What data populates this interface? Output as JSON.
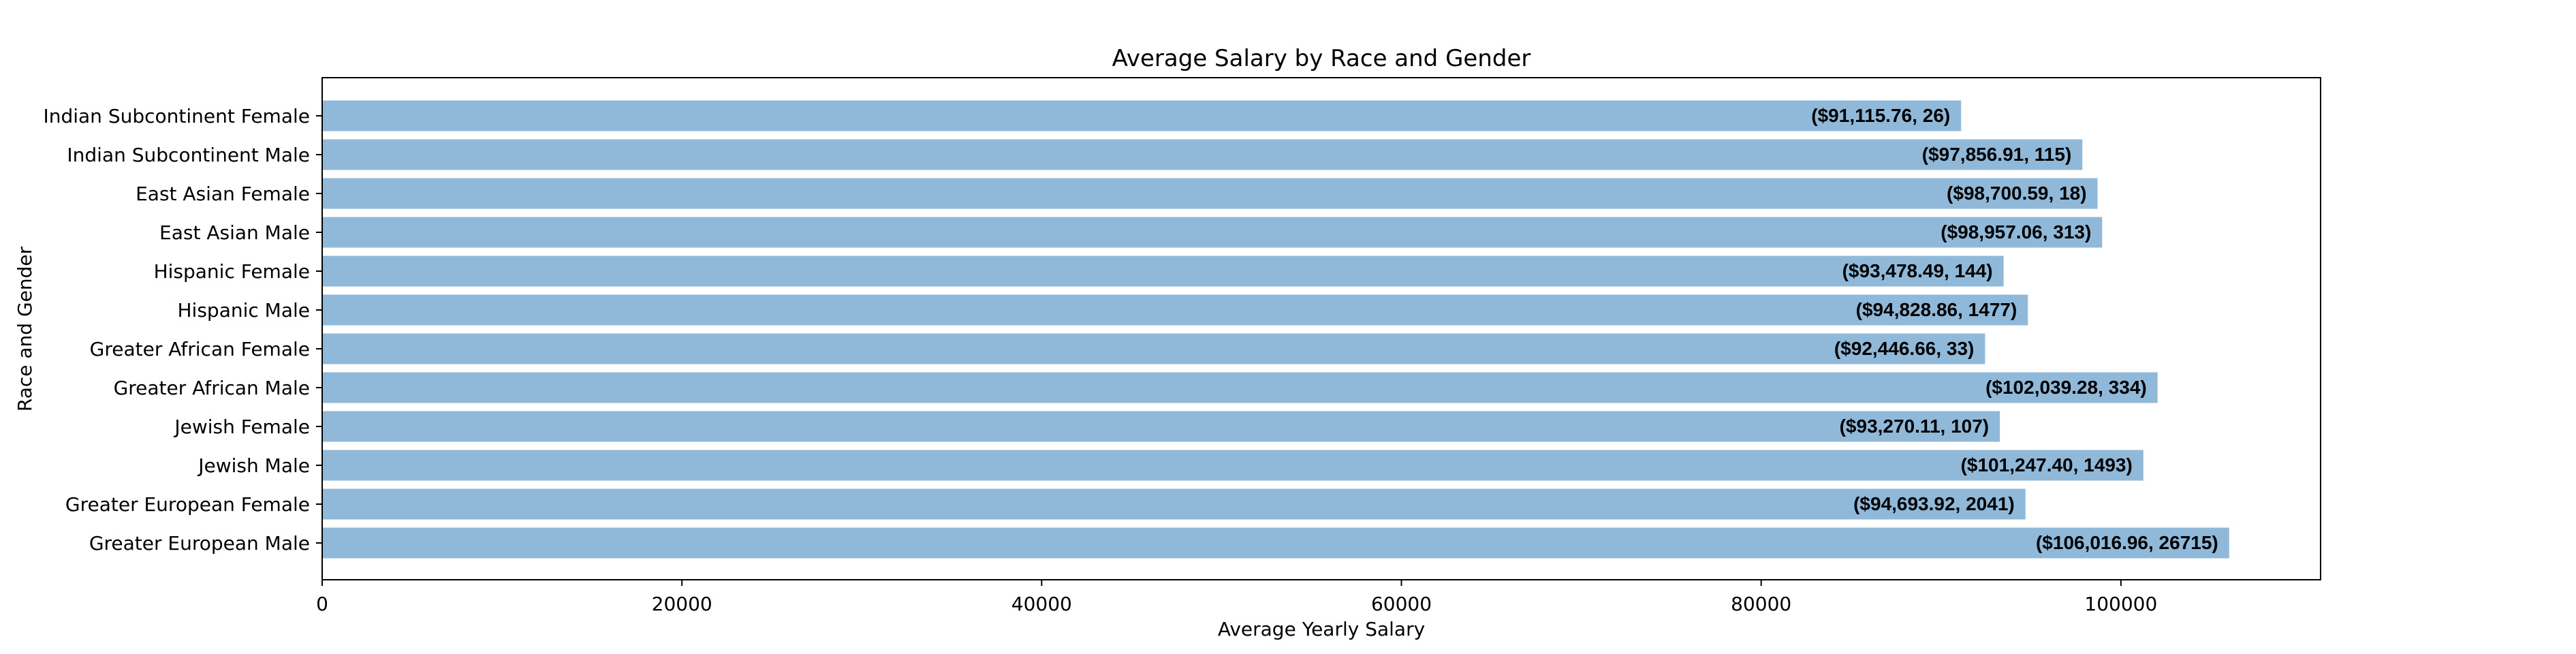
{
  "chart_data": {
    "type": "bar",
    "orientation": "horizontal",
    "title": "Average Salary by Race and Gender",
    "xlabel": "Average Yearly Salary",
    "ylabel": "Race and Gender",
    "xlim": [
      0,
      111100
    ],
    "xticks": [
      0,
      20000,
      40000,
      60000,
      80000,
      100000
    ],
    "grid": false,
    "bar_color": "#8fb8d9",
    "categories": [
      "Greater European Male",
      "Greater European Female",
      "Jewish Male",
      "Jewish Female",
      "Greater African Male",
      "Greater African Female",
      "Hispanic Male",
      "Hispanic Female",
      "East Asian Male",
      "East Asian Female",
      "Indian Subcontinent Male",
      "Indian Subcontinent Female"
    ],
    "values": [
      106016.96,
      94693.92,
      101247.4,
      93270.11,
      102039.28,
      92446.66,
      94828.86,
      93478.49,
      98957.06,
      98700.59,
      97856.91,
      91115.76
    ],
    "counts": [
      26715,
      2041,
      1493,
      107,
      334,
      33,
      1477,
      144,
      313,
      18,
      115,
      26
    ],
    "data_labels": [
      "($106,016.96, 26715)",
      "($94,693.92, 2041)",
      "($101,247.40, 1493)",
      "($93,270.11, 107)",
      "($102,039.28, 334)",
      "($92,446.66, 33)",
      "($94,828.86, 1477)",
      "($93,478.49, 144)",
      "($98,957.06, 313)",
      "($98,700.59, 18)",
      "($97,856.91, 115)",
      "($91,115.76, 26)"
    ]
  }
}
